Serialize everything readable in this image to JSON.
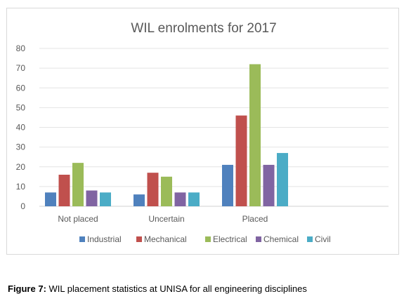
{
  "chart_data": {
    "type": "bar",
    "title": "WIL enrolments for 2017",
    "categories": [
      "Not placed",
      "Uncertain",
      "Placed"
    ],
    "series": [
      {
        "name": "Industrial",
        "color": "#4f81bd",
        "values": [
          7,
          6,
          21
        ]
      },
      {
        "name": "Mechanical",
        "color": "#c0504d",
        "values": [
          16,
          17,
          46
        ]
      },
      {
        "name": "Electrical",
        "color": "#9bbb59",
        "values": [
          22,
          15,
          72
        ]
      },
      {
        "name": "Chemical",
        "color": "#8064a2",
        "values": [
          8,
          7,
          21
        ]
      },
      {
        "name": "Civil",
        "color": "#4bacc6",
        "values": [
          7,
          7,
          27
        ]
      }
    ],
    "ylim": [
      0,
      80
    ],
    "yticks": [
      0,
      10,
      20,
      30,
      40,
      50,
      60,
      70,
      80
    ],
    "grid": true,
    "legend": "bottom"
  },
  "caption": {
    "label": "Figure 7:",
    "text": " WIL placement statistics at UNISA for all engineering disciplines"
  }
}
